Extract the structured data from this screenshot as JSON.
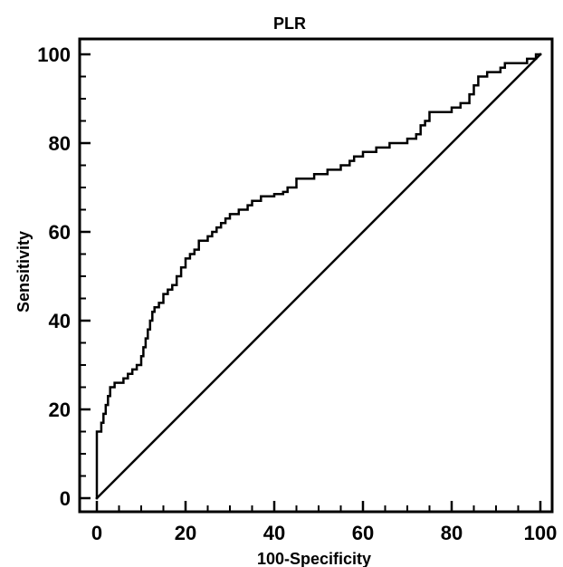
{
  "chart_data": {
    "type": "line",
    "title": "PLR",
    "xlabel": "100-Specificity",
    "ylabel": "Sensitivity",
    "xlim": [
      0,
      100
    ],
    "ylim": [
      0,
      100
    ],
    "x_ticks": [
      0,
      20,
      40,
      60,
      80,
      100
    ],
    "y_ticks": [
      0,
      20,
      40,
      60,
      80,
      100
    ],
    "grid": false,
    "legend": "none",
    "series": [
      {
        "name": "",
        "style": "step",
        "color": "#000000",
        "points": [
          [
            0,
            0
          ],
          [
            0,
            15
          ],
          [
            1,
            15
          ],
          [
            1,
            17
          ],
          [
            1.5,
            17
          ],
          [
            1.5,
            19
          ],
          [
            2,
            19
          ],
          [
            2,
            21
          ],
          [
            2.5,
            21
          ],
          [
            2.5,
            23
          ],
          [
            3,
            23
          ],
          [
            3,
            25
          ],
          [
            4,
            25
          ],
          [
            4,
            26
          ],
          [
            6,
            26
          ],
          [
            6,
            27
          ],
          [
            7,
            27
          ],
          [
            7,
            28
          ],
          [
            8,
            28
          ],
          [
            8,
            29
          ],
          [
            9,
            29
          ],
          [
            9,
            30
          ],
          [
            10,
            30
          ],
          [
            10,
            32
          ],
          [
            10.5,
            32
          ],
          [
            10.5,
            34
          ],
          [
            11,
            34
          ],
          [
            11,
            36
          ],
          [
            11.5,
            36
          ],
          [
            11.5,
            38
          ],
          [
            12,
            38
          ],
          [
            12,
            40
          ],
          [
            12.5,
            40
          ],
          [
            12.5,
            42
          ],
          [
            13,
            42
          ],
          [
            13,
            43
          ],
          [
            14,
            43
          ],
          [
            14,
            44
          ],
          [
            15,
            44
          ],
          [
            15,
            46
          ],
          [
            16,
            46
          ],
          [
            16,
            47
          ],
          [
            17,
            47
          ],
          [
            17,
            48
          ],
          [
            18,
            48
          ],
          [
            18,
            50
          ],
          [
            19,
            50
          ],
          [
            19,
            52
          ],
          [
            20,
            52
          ],
          [
            20,
            54
          ],
          [
            21,
            54
          ],
          [
            21,
            55
          ],
          [
            22,
            55
          ],
          [
            22,
            56
          ],
          [
            23,
            56
          ],
          [
            23,
            58
          ],
          [
            25,
            58
          ],
          [
            25,
            59
          ],
          [
            26,
            59
          ],
          [
            26,
            60
          ],
          [
            27,
            60
          ],
          [
            27,
            61
          ],
          [
            28,
            61
          ],
          [
            28,
            62
          ],
          [
            29,
            62
          ],
          [
            29,
            63
          ],
          [
            30,
            63
          ],
          [
            30,
            64
          ],
          [
            32,
            64
          ],
          [
            32,
            65
          ],
          [
            34,
            65
          ],
          [
            34,
            66
          ],
          [
            35,
            66
          ],
          [
            35,
            67
          ],
          [
            37,
            67
          ],
          [
            37,
            68
          ],
          [
            40,
            68
          ],
          [
            40,
            68.5
          ],
          [
            42,
            68.5
          ],
          [
            42,
            69
          ],
          [
            43,
            69
          ],
          [
            43,
            70
          ],
          [
            45,
            70
          ],
          [
            45,
            72
          ],
          [
            49,
            72
          ],
          [
            49,
            73
          ],
          [
            52,
            73
          ],
          [
            52,
            74
          ],
          [
            55,
            74
          ],
          [
            55,
            75
          ],
          [
            57,
            75
          ],
          [
            57,
            76
          ],
          [
            58,
            76
          ],
          [
            58,
            77
          ],
          [
            60,
            77
          ],
          [
            60,
            78
          ],
          [
            63,
            78
          ],
          [
            63,
            79
          ],
          [
            66,
            79
          ],
          [
            66,
            80
          ],
          [
            70,
            80
          ],
          [
            70,
            81
          ],
          [
            72,
            81
          ],
          [
            72,
            82
          ],
          [
            73,
            82
          ],
          [
            73,
            84
          ],
          [
            74,
            84
          ],
          [
            74,
            85
          ],
          [
            75,
            85
          ],
          [
            75,
            87
          ],
          [
            80,
            87
          ],
          [
            80,
            88
          ],
          [
            82,
            88
          ],
          [
            82,
            89
          ],
          [
            84,
            89
          ],
          [
            84,
            91
          ],
          [
            85,
            91
          ],
          [
            85,
            93
          ],
          [
            86,
            93
          ],
          [
            86,
            95
          ],
          [
            88,
            95
          ],
          [
            88,
            96
          ],
          [
            91,
            96
          ],
          [
            91,
            97
          ],
          [
            92,
            97
          ],
          [
            92,
            98
          ],
          [
            97,
            98
          ],
          [
            97,
            99
          ],
          [
            99,
            99
          ],
          [
            99,
            100
          ],
          [
            100,
            100
          ]
        ]
      },
      {
        "name": "",
        "style": "line",
        "color": "#000000",
        "points": [
          [
            0,
            0
          ],
          [
            100,
            100
          ]
        ]
      }
    ]
  }
}
